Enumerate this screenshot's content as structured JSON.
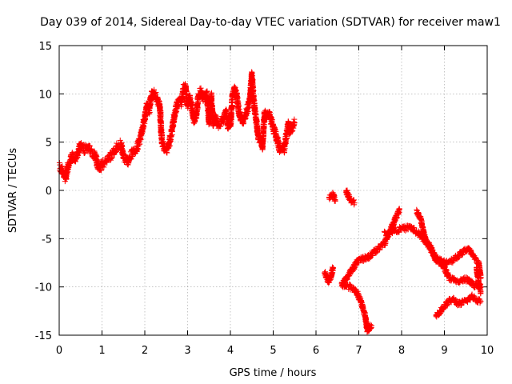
{
  "chart_data": {
    "type": "scatter",
    "title": "Day 039 of 2014, Sidereal Day-to-day VTEC variation (SDTVAR) for receiver maw1",
    "xlabel": "GPS time / hours",
    "ylabel": "SDTVAR / TECUs",
    "xlim": [
      0,
      10
    ],
    "ylim": [
      -15,
      15
    ],
    "xticks": [
      "0",
      "1",
      "2",
      "3",
      "4",
      "5",
      "6",
      "7",
      "8",
      "9",
      "10"
    ],
    "yticks": [
      "15",
      "10",
      "5",
      "0",
      "-5",
      "-10",
      "-15"
    ],
    "grid": true,
    "marker": "+",
    "color": "#ff0000",
    "series": [
      {
        "name": "SDTVAR",
        "trend_x": [
          0.0,
          0.05,
          0.1,
          0.15,
          0.2,
          0.25,
          0.3,
          0.35,
          0.4,
          0.45,
          0.5,
          0.55,
          0.6,
          0.65,
          0.7,
          0.75,
          0.8,
          0.85,
          0.9,
          0.95,
          1.0,
          1.05,
          1.1,
          1.15,
          1.2,
          1.25,
          1.3,
          1.35,
          1.4,
          1.45,
          1.5,
          1.55,
          1.6,
          1.65,
          1.7,
          1.75,
          1.8,
          1.85,
          1.9,
          1.95,
          2.0,
          2.05,
          2.1,
          2.15,
          2.2,
          2.25,
          2.3,
          2.35,
          2.4,
          2.45,
          2.5,
          2.55,
          2.6,
          2.65,
          2.7,
          2.75,
          2.8,
          2.85,
          2.9,
          2.95,
          3.0,
          3.05,
          3.1,
          3.15,
          3.2,
          3.25,
          3.3,
          3.35,
          3.4,
          3.45,
          3.5,
          3.55,
          3.6,
          3.65,
          3.7,
          3.75,
          3.8,
          3.85,
          3.9,
          3.95,
          4.0,
          4.05,
          4.1,
          4.15,
          4.2,
          4.25,
          4.3,
          4.35,
          4.4,
          4.45,
          4.5,
          4.55,
          4.6,
          4.65,
          4.7,
          4.75,
          4.8,
          4.85,
          4.9,
          4.95,
          5.0,
          5.05,
          5.1,
          5.15,
          5.2,
          5.25,
          5.3,
          5.35,
          5.4,
          5.45,
          5.5
        ],
        "trend_y": [
          2.5,
          2.2,
          1.8,
          1.2,
          2.5,
          3.0,
          3.5,
          3.2,
          3.5,
          4.0,
          4.8,
          4.5,
          4.2,
          4.5,
          4.3,
          4.0,
          3.8,
          3.5,
          2.5,
          2.2,
          2.8,
          2.8,
          3.0,
          3.2,
          3.5,
          3.8,
          4.0,
          4.5,
          4.7,
          4.8,
          3.5,
          3.2,
          3.0,
          3.5,
          3.8,
          4.0,
          4.2,
          4.8,
          5.5,
          6.5,
          7.5,
          8.8,
          8.2,
          9.8,
          10.2,
          9.8,
          9.2,
          8.8,
          5.0,
          4.5,
          4.2,
          4.5,
          5.5,
          6.5,
          8.0,
          8.8,
          9.2,
          9.0,
          10.5,
          10.8,
          8.8,
          9.5,
          8.5,
          7.2,
          7.8,
          9.8,
          10.2,
          9.8,
          9.5,
          10.0,
          7.2,
          9.8,
          7.0,
          7.5,
          6.8,
          7.0,
          7.2,
          7.5,
          8.0,
          6.5,
          6.8,
          9.8,
          10.5,
          9.8,
          8.2,
          7.5,
          7.2,
          7.8,
          8.5,
          9.2,
          12.0,
          9.0,
          7.5,
          5.5,
          5.2,
          4.5,
          8.0,
          7.8,
          8.0,
          7.2,
          6.5,
          5.8,
          5.2,
          4.2,
          4.5,
          4.2,
          5.5,
          6.8,
          6.0,
          6.5,
          7.0
        ],
        "notes": "Dense clusters of '+' markers; lower-right segment between x=6.2 and 10 spans y=-15 to 0"
      }
    ]
  }
}
